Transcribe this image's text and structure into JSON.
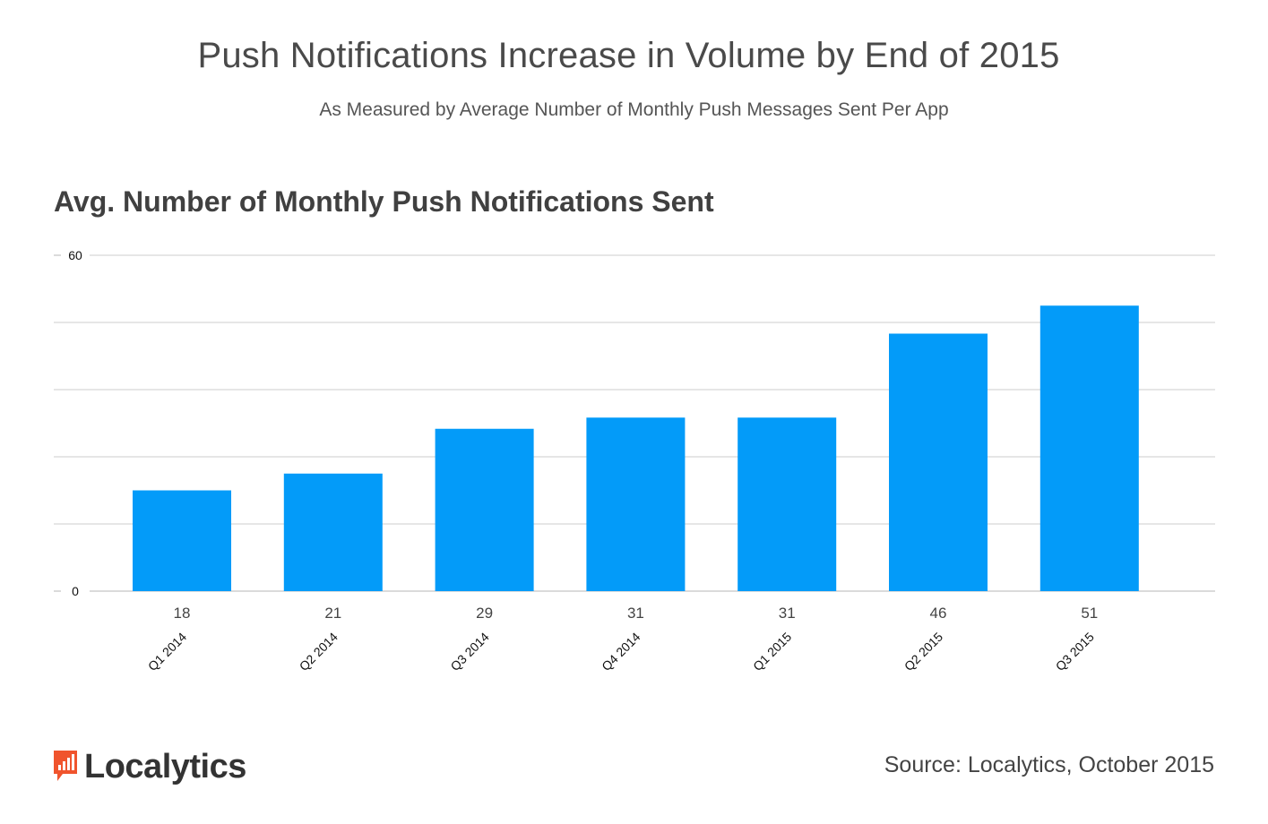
{
  "title": "Push Notifications Increase in Volume by End of 2015",
  "subtitle": "As Measured by Average Number of Monthly Push Messages Sent Per App",
  "chart_data": {
    "type": "bar",
    "title": "Avg. Number of Monthly Push Notifications Sent",
    "categories": [
      "Q1 2014",
      "Q2 2014",
      "Q3 2014",
      "Q4 2014",
      "Q1 2015",
      "Q2 2015",
      "Q3 2015"
    ],
    "values": [
      18,
      21,
      29,
      31,
      31,
      46,
      51
    ],
    "value_labels": [
      "18",
      "21",
      "29",
      "31",
      "31",
      "46",
      "51"
    ],
    "ylim": [
      0,
      60
    ],
    "yticks": [
      0,
      12,
      24,
      36,
      48,
      60
    ],
    "ytick_labels": [
      "0",
      "",
      "",
      "",
      "",
      "60"
    ],
    "grid": true,
    "bar_color": "#039BF9",
    "xlabel": "",
    "ylabel": ""
  },
  "footer": {
    "logo_text": "Localytics",
    "logo_color": "#F0542D",
    "source": "Source: Localytics, October 2015"
  }
}
